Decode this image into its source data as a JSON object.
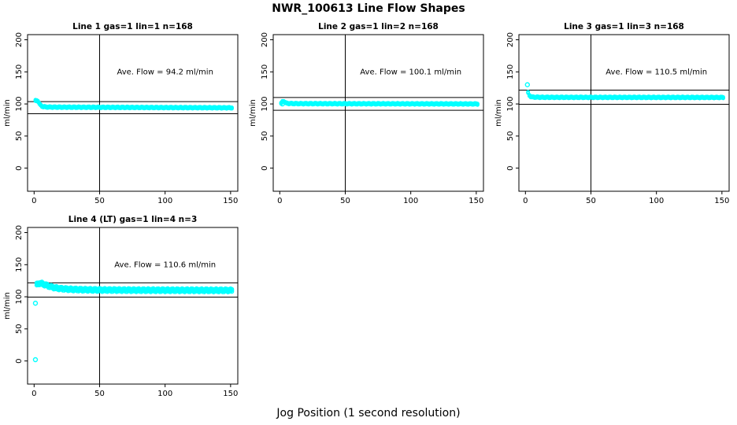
{
  "page": {
    "main_title": "NWR_100613  Line Flow Shapes",
    "x_axis_label": "Jog Position (1 second resolution)",
    "background_color": "#ffffff",
    "point_color": "#00ffff",
    "line_color": "#000000"
  },
  "chart_data": [
    {
      "type": "scatter",
      "title": "Line 1 gas=1 lin=1 n=168",
      "ylabel": "ml/min",
      "annotation": "Ave. Flow =  94.2  ml/min",
      "ave_flow_ml_min": 94.2,
      "n_jogs": 168,
      "x_ticks": [
        0,
        50,
        100,
        150
      ],
      "y_ticks": [
        0,
        50,
        100,
        150,
        200
      ],
      "xlim": [
        -5,
        155.5
      ],
      "ylim": [
        -36,
        208
      ],
      "vline_x": 50,
      "hlines_y": [
        103.6,
        84.8
      ],
      "annotation_xy": [
        100,
        150
      ],
      "series_keypoints": [
        [
          1,
          105
        ],
        [
          2,
          105.2
        ],
        [
          3,
          104.3
        ],
        [
          4,
          100.5
        ],
        [
          5,
          98
        ],
        [
          6,
          96.5
        ],
        [
          7,
          95.8
        ],
        [
          9,
          95.2
        ],
        [
          15,
          95
        ],
        [
          40,
          94.8
        ],
        [
          90,
          94.4
        ],
        [
          151,
          94
        ]
      ],
      "x_end": 151,
      "outliers": [],
      "band_offsets": [
        -1.0,
        0,
        1.0
      ],
      "wiggle": 0.5,
      "point_radius": 1.8
    },
    {
      "type": "scatter",
      "title": "Line 2 gas=1 lin=2 n=168",
      "ylabel": "ml/min",
      "annotation": "Ave. Flow =  100.1  ml/min",
      "ave_flow_ml_min": 100.1,
      "n_jogs": 168,
      "x_ticks": [
        0,
        50,
        100,
        150
      ],
      "y_ticks": [
        0,
        50,
        100,
        150,
        200
      ],
      "xlim": [
        -5,
        155.5
      ],
      "ylim": [
        -36,
        208
      ],
      "vline_x": 50,
      "hlines_y": [
        110.1,
        90.1
      ],
      "annotation_xy": [
        100,
        150
      ],
      "series_keypoints": [
        [
          1,
          100.8
        ],
        [
          2,
          103.5
        ],
        [
          3,
          104.2
        ],
        [
          4,
          102.5
        ],
        [
          5,
          101.2
        ],
        [
          7,
          100.7
        ],
        [
          12,
          100.5
        ],
        [
          60,
          100.3
        ],
        [
          151,
          100
        ]
      ],
      "x_end": 151,
      "outliers": [
        [
          2,
          100
        ]
      ],
      "band_offsets": [
        -1.0,
        0,
        1.0
      ],
      "wiggle": 0.5,
      "point_radius": 1.8
    },
    {
      "type": "scatter",
      "title": "Line 3 gas=1 lin=3 n=168",
      "ylabel": "ml/min",
      "annotation": "Ave. Flow =  110.5  ml/min",
      "ave_flow_ml_min": 110.5,
      "n_jogs": 168,
      "x_ticks": [
        0,
        50,
        100,
        150
      ],
      "y_ticks": [
        0,
        50,
        100,
        150,
        200
      ],
      "xlim": [
        -5,
        155.5
      ],
      "ylim": [
        -36,
        208
      ],
      "vline_x": 50,
      "hlines_y": [
        121.6,
        99.5
      ],
      "annotation_xy": [
        100,
        150
      ],
      "series_keypoints": [
        [
          2,
          117.5
        ],
        [
          3,
          113.5
        ],
        [
          4,
          111.5
        ],
        [
          5,
          110.8
        ],
        [
          8,
          110.5
        ],
        [
          15,
          110.3
        ],
        [
          151,
          110.1
        ]
      ],
      "x_end": 151,
      "outliers": [
        [
          1.5,
          130
        ]
      ],
      "band_offsets": [
        -1.0,
        0,
        1.0
      ],
      "wiggle": 0.5,
      "point_radius": 1.8
    },
    {
      "type": "scatter",
      "title": "Line 4 (LT) gas=1 lin=4 n=3",
      "ylabel": "ml/min",
      "annotation": "Ave. Flow =  110.6  ml/min",
      "ave_flow_ml_min": 110.6,
      "n_jogs": 3,
      "x_ticks": [
        0,
        50,
        100,
        150
      ],
      "y_ticks": [
        0,
        50,
        100,
        150,
        200
      ],
      "xlim": [
        -5,
        155.5
      ],
      "ylim": [
        -36,
        208
      ],
      "vline_x": 50,
      "hlines_y": [
        121.7,
        99.5
      ],
      "annotation_xy": [
        100,
        150
      ],
      "series_keypoints": [
        [
          2,
          119
        ],
        [
          4,
          121
        ],
        [
          6,
          120.5
        ],
        [
          8,
          119
        ],
        [
          10,
          117.5
        ],
        [
          13,
          115.5
        ],
        [
          16,
          114
        ],
        [
          20,
          112.8
        ],
        [
          26,
          111.8
        ],
        [
          35,
          111.1
        ],
        [
          50,
          110.6
        ],
        [
          80,
          110.3
        ],
        [
          151,
          110
        ]
      ],
      "x_end": 151,
      "outliers": [
        [
          1,
          90
        ],
        [
          1,
          2
        ]
      ],
      "band_offsets": [
        -1.9,
        0.1,
        1.9
      ],
      "wiggle": 0.9,
      "point_radius": 2.2
    }
  ]
}
